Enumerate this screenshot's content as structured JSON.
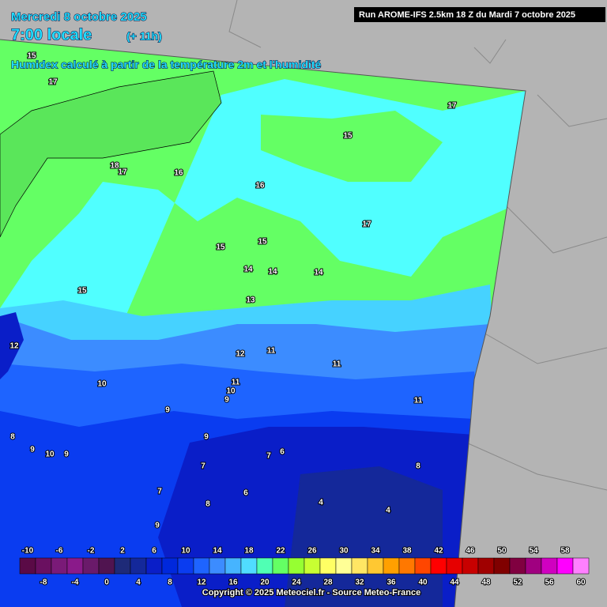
{
  "header": {
    "date": "Mercredi 8 octobre 2025",
    "time": "7:00 locale",
    "lead": "(+ 11h)",
    "subtitle": "Humidex calculé à partir de la température 2m et l'humidité",
    "run": "Run AROME-IFS 2.5km 18 Z du Mardi 7 octobre 2025"
  },
  "contour_labels": [
    15,
    17,
    18,
    17,
    16,
    16,
    15,
    17,
    17,
    15,
    15,
    14,
    14,
    14,
    15,
    13,
    12,
    12,
    11,
    11,
    10,
    11,
    10,
    9,
    11,
    9,
    8,
    9,
    10,
    9,
    9,
    7,
    6,
    8,
    7,
    7,
    6,
    8,
    4,
    4,
    9
  ],
  "legend": {
    "values": [
      -10,
      -8,
      -6,
      -4,
      -2,
      0,
      2,
      4,
      6,
      8,
      10,
      12,
      14,
      16,
      18,
      20,
      22,
      24,
      26,
      28,
      30,
      32,
      34,
      36,
      38,
      40,
      42,
      44,
      46,
      48,
      50,
      52,
      54,
      56,
      58,
      60
    ],
    "colors": [
      "#5a0a46",
      "#6a1060",
      "#7a1a78",
      "#8a1a8a",
      "#6a1a6a",
      "#501450",
      "#1e2a78",
      "#14289a",
      "#0a1ec8",
      "#0028dc",
      "#0a3cf0",
      "#1e64ff",
      "#3c8cff",
      "#46b4ff",
      "#50dcff",
      "#50ffb4",
      "#64ff64",
      "#96ff32",
      "#c8ff32",
      "#ffff64",
      "#ffff96",
      "#ffe664",
      "#ffc832",
      "#ffa000",
      "#ff7800",
      "#ff4600",
      "#ff0000",
      "#e60000",
      "#c80000",
      "#a00000",
      "#800000",
      "#800040",
      "#a00080",
      "#d000c0",
      "#ff00ff",
      "#ff80ff"
    ]
  },
  "footer": "Copyright © 2025 Meteociel.fr - Source Meteo-France"
}
